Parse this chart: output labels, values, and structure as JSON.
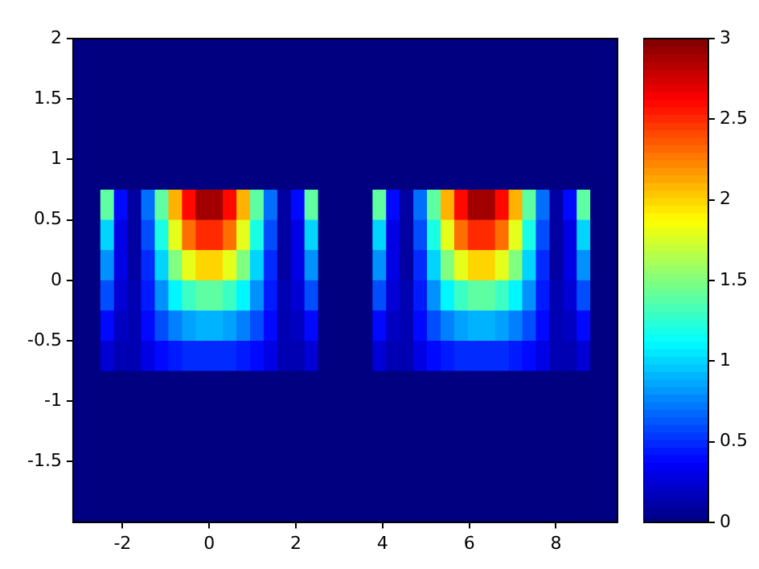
{
  "chart_data": {
    "type": "heatmap",
    "xlim": [
      -3.14,
      9.42
    ],
    "ylim": [
      -2,
      2
    ],
    "xticks": [
      -2,
      0,
      2,
      4,
      6,
      8
    ],
    "yticks": [
      -1.5,
      -1,
      -0.5,
      0,
      0.5,
      1,
      1.5,
      2
    ],
    "clim": [
      0,
      3
    ],
    "cticks": [
      0,
      0.5,
      1,
      1.5,
      2,
      2.5,
      3
    ],
    "cells": [
      [
        0,
        0,
        0,
        0,
        0,
        0,
        0,
        0,
        0,
        0,
        0,
        0,
        0,
        0,
        0,
        0,
        0,
        0,
        0,
        0,
        0,
        0,
        0,
        0,
        0,
        0,
        0,
        0,
        0,
        0,
        0,
        0,
        0,
        0,
        0,
        0,
        0,
        0,
        0,
        0
      ],
      [
        0,
        0,
        0,
        0,
        0,
        0,
        0,
        0,
        0,
        0,
        0,
        0,
        0,
        0,
        0,
        0,
        0,
        0,
        0,
        0,
        0,
        0,
        0,
        0,
        0,
        0,
        0,
        0,
        0,
        0,
        0,
        0,
        0,
        0,
        0,
        0,
        0,
        0,
        0,
        0
      ],
      [
        0,
        0,
        0,
        0,
        0,
        0,
        0,
        0,
        0,
        0,
        0,
        0,
        0,
        0,
        0,
        0,
        0,
        0,
        0,
        0,
        0,
        0,
        0,
        0,
        0,
        0,
        0,
        0,
        0,
        0,
        0,
        0,
        0,
        0,
        0,
        0,
        0,
        0,
        0,
        0
      ],
      [
        0,
        0,
        0,
        0,
        0,
        0,
        0,
        0,
        0,
        0,
        0,
        0,
        0,
        0,
        0,
        0,
        0,
        0,
        0,
        0,
        0,
        0,
        0,
        0,
        0,
        0,
        0,
        0,
        0,
        0,
        0,
        0,
        0,
        0,
        0,
        0,
        0,
        0,
        0,
        0
      ],
      [
        0,
        0,
        0,
        0,
        0,
        0,
        0,
        0,
        0,
        0,
        0,
        0,
        0,
        0,
        0,
        0,
        0,
        0,
        0,
        0,
        0,
        0,
        0,
        0,
        0,
        0,
        0,
        0,
        0,
        0,
        0,
        0,
        0,
        0,
        0,
        0,
        0,
        0,
        0,
        0
      ],
      [
        0,
        0,
        1.4,
        0.4,
        0.1,
        0.7,
        1.4,
        2.1,
        2.6,
        2.9,
        2.9,
        2.6,
        2.1,
        1.4,
        0.7,
        0.1,
        0.4,
        1.4,
        0,
        0,
        0,
        0,
        1.4,
        0.4,
        0.1,
        0.7,
        1.4,
        2.1,
        2.6,
        2.9,
        2.9,
        2.6,
        2.1,
        1.4,
        0.7,
        0.1,
        0.4,
        1.4,
        0,
        0
      ],
      [
        0,
        0,
        1,
        0.3,
        0.1,
        0.6,
        1.2,
        1.8,
        2.3,
        2.5,
        2.5,
        2.3,
        1.8,
        1.2,
        0.6,
        0.1,
        0.3,
        1,
        0,
        0,
        0,
        0,
        1,
        0.3,
        0.1,
        0.6,
        1.2,
        1.8,
        2.3,
        2.5,
        2.5,
        2.3,
        1.8,
        1.2,
        0.6,
        0.1,
        0.3,
        1,
        0,
        0
      ],
      [
        0,
        0,
        0.8,
        0.3,
        0.1,
        0.5,
        1,
        1.5,
        1.8,
        2,
        2,
        1.8,
        1.5,
        1,
        0.5,
        0.1,
        0.3,
        0.8,
        0,
        0,
        0,
        0,
        0.8,
        0.3,
        0.1,
        0.5,
        1,
        1.5,
        1.8,
        2,
        2,
        1.8,
        1.5,
        1,
        0.5,
        0.1,
        0.3,
        0.8,
        0,
        0
      ],
      [
        0,
        0,
        0.6,
        0.25,
        0.15,
        0.45,
        0.8,
        1.1,
        1.3,
        1.4,
        1.4,
        1.3,
        1.1,
        0.8,
        0.45,
        0.15,
        0.25,
        0.6,
        0,
        0,
        0,
        0,
        0.6,
        0.25,
        0.15,
        0.45,
        0.8,
        1.1,
        1.3,
        1.4,
        1.4,
        1.3,
        1.1,
        0.8,
        0.45,
        0.15,
        0.25,
        0.6,
        0,
        0
      ],
      [
        0,
        0,
        0.4,
        0.2,
        0.15,
        0.4,
        0.6,
        0.75,
        0.85,
        0.9,
        0.9,
        0.85,
        0.75,
        0.6,
        0.4,
        0.15,
        0.2,
        0.4,
        0,
        0,
        0,
        0,
        0.4,
        0.2,
        0.15,
        0.4,
        0.6,
        0.75,
        0.85,
        0.9,
        0.9,
        0.85,
        0.75,
        0.6,
        0.4,
        0.15,
        0.2,
        0.4,
        0,
        0
      ],
      [
        0,
        0,
        0.25,
        0.15,
        0.15,
        0.3,
        0.4,
        0.45,
        0.5,
        0.5,
        0.5,
        0.5,
        0.45,
        0.4,
        0.3,
        0.15,
        0.15,
        0.25,
        0,
        0,
        0,
        0,
        0.25,
        0.15,
        0.15,
        0.3,
        0.4,
        0.45,
        0.5,
        0.5,
        0.5,
        0.5,
        0.45,
        0.4,
        0.3,
        0.15,
        0.15,
        0.25,
        0,
        0
      ],
      [
        0,
        0,
        0,
        0,
        0,
        0,
        0,
        0,
        0,
        0,
        0,
        0,
        0,
        0,
        0,
        0,
        0,
        0,
        0,
        0,
        0,
        0,
        0,
        0,
        0,
        0,
        0,
        0,
        0,
        0,
        0,
        0,
        0,
        0,
        0,
        0,
        0,
        0,
        0,
        0
      ],
      [
        0,
        0,
        0,
        0,
        0,
        0,
        0,
        0,
        0,
        0,
        0,
        0,
        0,
        0,
        0,
        0,
        0,
        0,
        0,
        0,
        0,
        0,
        0,
        0,
        0,
        0,
        0,
        0,
        0,
        0,
        0,
        0,
        0,
        0,
        0,
        0,
        0,
        0,
        0,
        0
      ],
      [
        0,
        0,
        0,
        0,
        0,
        0,
        0,
        0,
        0,
        0,
        0,
        0,
        0,
        0,
        0,
        0,
        0,
        0,
        0,
        0,
        0,
        0,
        0,
        0,
        0,
        0,
        0,
        0,
        0,
        0,
        0,
        0,
        0,
        0,
        0,
        0,
        0,
        0,
        0,
        0
      ],
      [
        0,
        0,
        0,
        0,
        0,
        0,
        0,
        0,
        0,
        0,
        0,
        0,
        0,
        0,
        0,
        0,
        0,
        0,
        0,
        0,
        0,
        0,
        0,
        0,
        0,
        0,
        0,
        0,
        0,
        0,
        0,
        0,
        0,
        0,
        0,
        0,
        0,
        0,
        0,
        0
      ],
      [
        0,
        0,
        0,
        0,
        0,
        0,
        0,
        0,
        0,
        0,
        0,
        0,
        0,
        0,
        0,
        0,
        0,
        0,
        0,
        0,
        0,
        0,
        0,
        0,
        0,
        0,
        0,
        0,
        0,
        0,
        0,
        0,
        0,
        0,
        0,
        0,
        0,
        0,
        0,
        0
      ]
    ]
  }
}
